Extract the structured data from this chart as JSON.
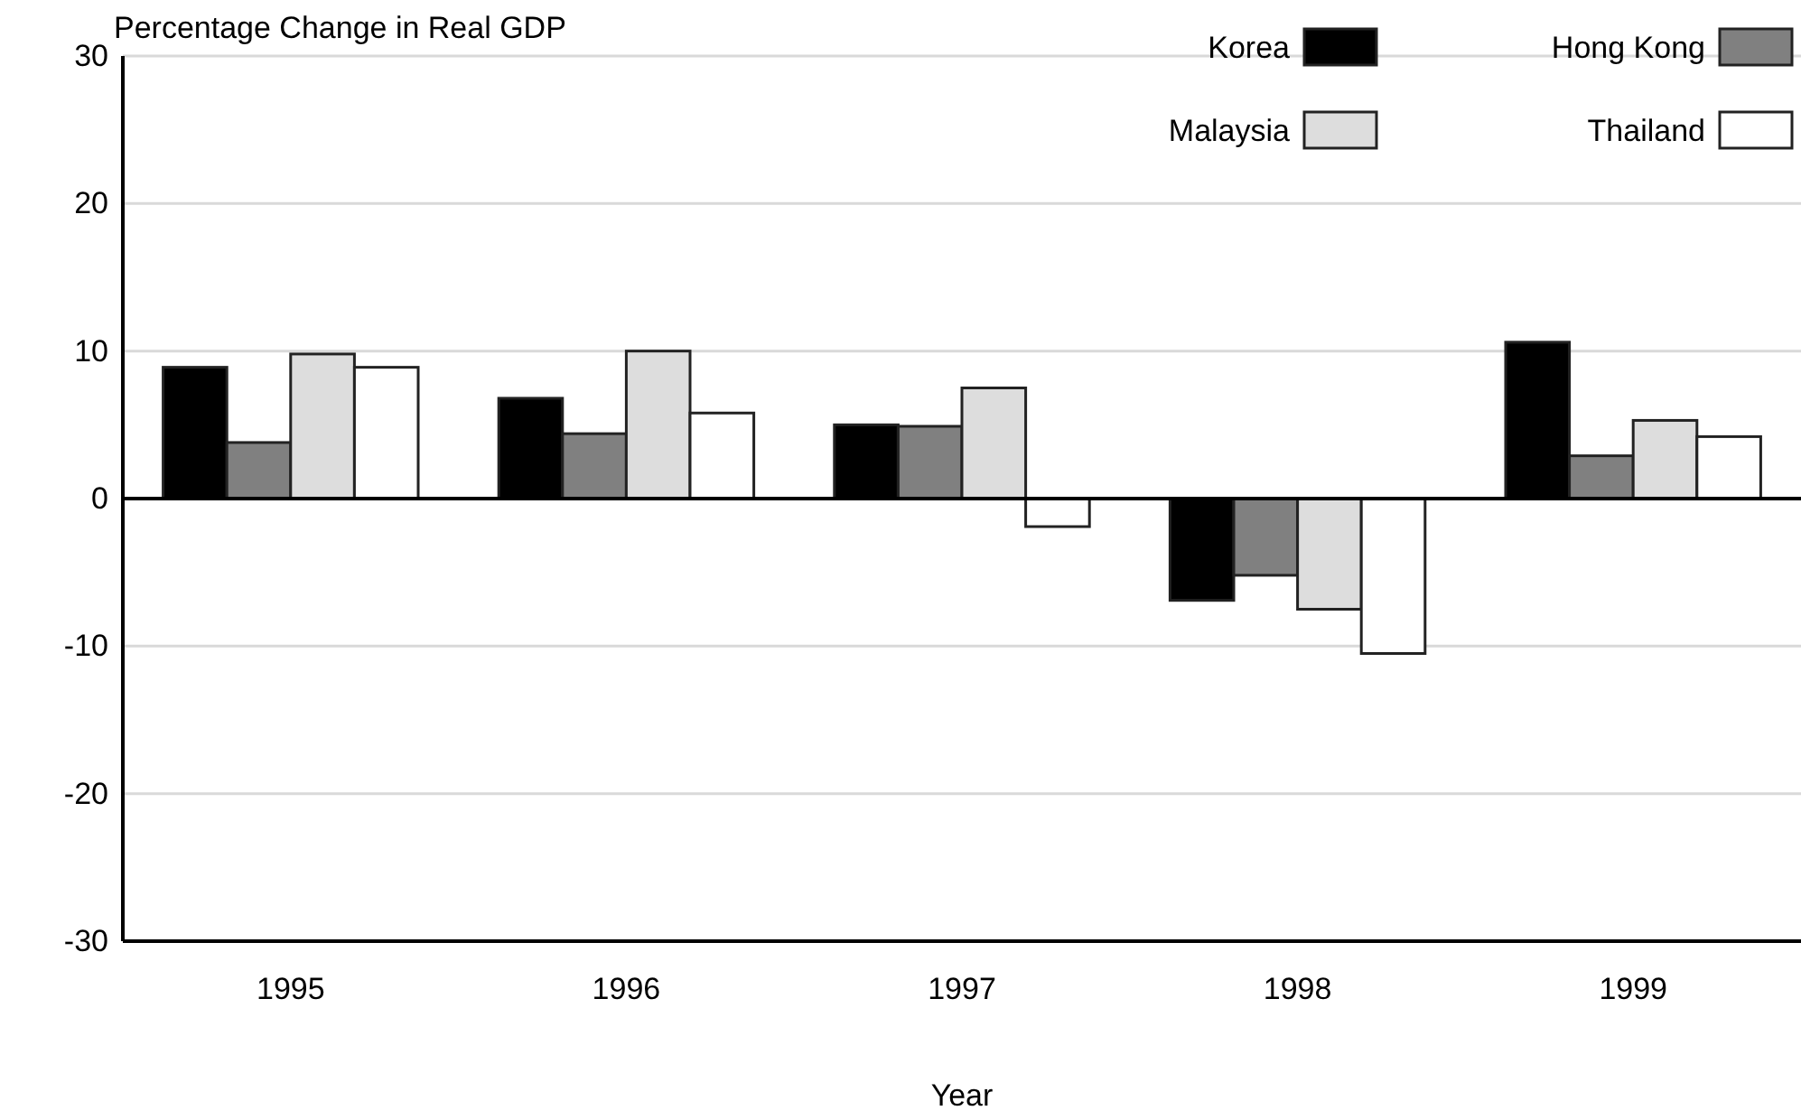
{
  "chart_data": {
    "type": "bar",
    "ylabel": "Percentage Change in Real GDP",
    "xlabel": "Year",
    "categories": [
      "1995",
      "1996",
      "1997",
      "1998",
      "1999"
    ],
    "series": [
      {
        "name": "Korea",
        "color": "#000000",
        "values": [
          8.9,
          6.8,
          5.0,
          -6.9,
          10.6
        ]
      },
      {
        "name": "Hong Kong",
        "color": "#808080",
        "values": [
          3.8,
          4.4,
          4.9,
          -5.2,
          2.9
        ]
      },
      {
        "name": "Malaysia",
        "color": "#dddddd",
        "values": [
          9.8,
          10.0,
          7.5,
          -7.5,
          5.3
        ]
      },
      {
        "name": "Thailand",
        "color": "#ffffff",
        "values": [
          8.9,
          5.8,
          -1.9,
          -10.5,
          4.2
        ]
      }
    ],
    "ylim": [
      -30,
      30
    ],
    "yticks": [
      -30,
      -20,
      -10,
      0,
      10,
      20,
      30
    ],
    "grid": "y",
    "legend": "top right"
  }
}
